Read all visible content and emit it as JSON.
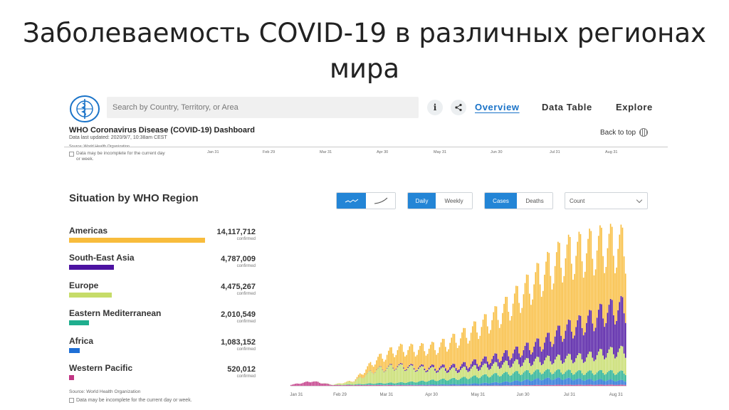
{
  "slide": {
    "title": "Заболеваемость COVID-19 в различных регионах мира"
  },
  "header": {
    "search_placeholder": "Search by Country, Territory, or Area",
    "info_label": "i",
    "nav": [
      "Overview",
      "Data Table",
      "Explore"
    ],
    "active_nav": "Overview",
    "dashboard_title": "WHO Coronavirus Disease (COVID-19) Dashboard",
    "data_updated": "Data last updated: 2020/9/7, 10:38am CEST",
    "back_to_top": "Back to top"
  },
  "top_strip": {
    "source": "Source: World Health Organization",
    "note": "Data may be incomplete for the current day or week.",
    "axis_labels": [
      "Jan 31",
      "Feb 29",
      "Mar 31",
      "Apr 30",
      "May 31",
      "Jun 30",
      "Jul 31",
      "Aug 31"
    ]
  },
  "situation": {
    "title": "Situation by WHO Region",
    "confirmed_label": "confirmed",
    "regions": [
      {
        "name": "Americas",
        "value": "14,117,712",
        "color": "#f8bc3c",
        "share": 1.0
      },
      {
        "name": "South-East Asia",
        "value": "4,787,009",
        "color": "#4c12a1",
        "share": 0.339
      },
      {
        "name": "Europe",
        "value": "4,475,267",
        "color": "#c6dc69",
        "share": 0.317
      },
      {
        "name": "Eastern Mediterranean",
        "value": "2,010,549",
        "color": "#1fae8e",
        "share": 0.142
      },
      {
        "name": "Africa",
        "value": "1,083,152",
        "color": "#1f6fd6",
        "share": 0.077
      },
      {
        "name": "Western Pacific",
        "value": "520,012",
        "color": "#c13584",
        "share": 0.037
      }
    ]
  },
  "controls": {
    "daily": "Daily",
    "weekly": "Weekly",
    "cases": "Cases",
    "deaths": "Deaths",
    "count": "Count"
  },
  "chart_data": {
    "type": "bar",
    "stacked": true,
    "x_tick_labels": [
      "Jan 31",
      "Feb 29",
      "Mar 31",
      "Apr 30",
      "May 31",
      "Jun 30",
      "Jul 31",
      "Aug 31"
    ],
    "series_order": [
      "Western Pacific",
      "Africa",
      "Eastern Mediterranean",
      "Europe",
      "South-East Asia",
      "Americas"
    ],
    "colors": [
      "#c13584",
      "#1f6fd6",
      "#1fae8e",
      "#c6dc69",
      "#4c12a1",
      "#f8bc3c"
    ],
    "grid": false,
    "legend": "none",
    "weekly_daily_totals_approx": [
      {
        "week_start": "2020-01-27",
        "values": [
          2000,
          0,
          0,
          0,
          0,
          0
        ]
      },
      {
        "week_start": "2020-02-10",
        "values": [
          9000,
          0,
          0,
          0,
          0,
          0
        ]
      },
      {
        "week_start": "2020-02-24",
        "values": [
          1500,
          0,
          200,
          500,
          0,
          0
        ]
      },
      {
        "week_start": "2020-03-09",
        "values": [
          1500,
          50,
          1200,
          6000,
          100,
          1500
        ]
      },
      {
        "week_start": "2020-03-23",
        "values": [
          1500,
          300,
          3000,
          26000,
          500,
          18000
        ]
      },
      {
        "week_start": "2020-04-06",
        "values": [
          1200,
          600,
          4000,
          32000,
          1500,
          32000
        ]
      },
      {
        "week_start": "2020-04-20",
        "values": [
          1000,
          1000,
          6000,
          26000,
          2500,
          35000
        ]
      },
      {
        "week_start": "2020-05-04",
        "values": [
          700,
          1800,
          9000,
          20000,
          4500,
          40000
        ]
      },
      {
        "week_start": "2020-05-18",
        "values": [
          600,
          2600,
          11000,
          17000,
          7000,
          55000
        ]
      },
      {
        "week_start": "2020-06-01",
        "values": [
          700,
          4000,
          14000,
          18000,
          11000,
          68000
        ]
      },
      {
        "week_start": "2020-06-15",
        "values": [
          800,
          6000,
          16000,
          19000,
          16000,
          85000
        ]
      },
      {
        "week_start": "2020-06-29",
        "values": [
          1200,
          9000,
          16000,
          20000,
          24000,
          110000
        ]
      },
      {
        "week_start": "2020-07-13",
        "values": [
          1600,
          12000,
          15000,
          22000,
          34000,
          135000
        ]
      },
      {
        "week_start": "2020-07-27",
        "values": [
          2000,
          12000,
          14000,
          26000,
          55000,
          145000
        ]
      },
      {
        "week_start": "2020-08-10",
        "values": [
          2000,
          10000,
          14000,
          30000,
          68000,
          140000
        ]
      },
      {
        "week_start": "2020-08-24",
        "values": [
          2200,
          9000,
          16000,
          38000,
          80000,
          130000
        ]
      },
      {
        "week_start": "2020-09-04",
        "values": [
          2000,
          8000,
          16000,
          42000,
          85000,
          120000
        ]
      }
    ]
  }
}
